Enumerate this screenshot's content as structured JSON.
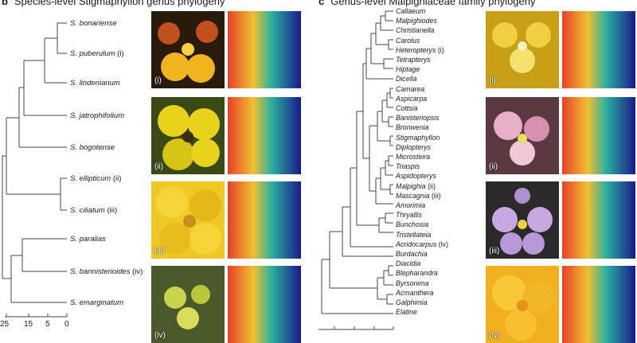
{
  "panel_b": {
    "letter": "b",
    "title": "Species-level Stigmaphyllon genus phylogeny",
    "species": [
      {
        "name": "S. bonariense",
        "annot": ""
      },
      {
        "name": "S. puberulum",
        "annot": "(i)"
      },
      {
        "name": "S. lindenianum",
        "annot": ""
      },
      {
        "name": "S. jatrophifolium",
        "annot": ""
      },
      {
        "name": "S. bogotense",
        "annot": ""
      },
      {
        "name": "S. ellipticum",
        "annot": "(ii)"
      },
      {
        "name": "S. ciliatum",
        "annot": "(iii)"
      },
      {
        "name": "S. paralias",
        "annot": ""
      },
      {
        "name": "S. bannisterioides",
        "annot": "(iv)"
      },
      {
        "name": "S. emarginatum",
        "annot": ""
      }
    ],
    "photos": [
      "(i)",
      "(ii)",
      "(iii)",
      "(iv)"
    ],
    "axis_ticks": [
      "25",
      "15",
      "5",
      "0"
    ]
  },
  "panel_c": {
    "letter": "c",
    "title": "Genus-level Malpighiaceae family phylogeny",
    "genera": [
      {
        "name": "Callaeum",
        "annot": ""
      },
      {
        "name": "Malpighiodes",
        "annot": ""
      },
      {
        "name": "Christianella",
        "annot": ""
      },
      {
        "name": "Carolus",
        "annot": ""
      },
      {
        "name": "Heteropterys",
        "annot": "(i)"
      },
      {
        "name": "Tetrapterys",
        "annot": ""
      },
      {
        "name": "Hiptage",
        "annot": ""
      },
      {
        "name": "Dicella",
        "annot": ""
      },
      {
        "name": "Camarea",
        "annot": ""
      },
      {
        "name": "Aspicarpa",
        "annot": ""
      },
      {
        "name": "Cottsia",
        "annot": ""
      },
      {
        "name": "Banisteriopsis",
        "annot": ""
      },
      {
        "name": "Bronwenia",
        "annot": ""
      },
      {
        "name": "Stigmaphyllon",
        "annot": ""
      },
      {
        "name": "Diplopterys",
        "annot": ""
      },
      {
        "name": "Microsteira",
        "annot": ""
      },
      {
        "name": "Triaspis",
        "annot": ""
      },
      {
        "name": "Aspidopterys",
        "annot": ""
      },
      {
        "name": "Malpighia",
        "annot": "(ii)"
      },
      {
        "name": "Mascagnia",
        "annot": "(iii)"
      },
      {
        "name": "Amorimia",
        "annot": ""
      },
      {
        "name": "Thryallis",
        "annot": ""
      },
      {
        "name": "Bunchosia",
        "annot": ""
      },
      {
        "name": "Tristellateia",
        "annot": ""
      },
      {
        "name": "Acridocarpus",
        "annot": "(iv)"
      },
      {
        "name": "Burdachia",
        "annot": ""
      },
      {
        "name": "Diacidia",
        "annot": ""
      },
      {
        "name": "Blepharandra",
        "annot": ""
      },
      {
        "name": "Byrsonima",
        "annot": ""
      },
      {
        "name": "Acmanthera",
        "annot": ""
      },
      {
        "name": "Galphimia",
        "annot": ""
      },
      {
        "name": "Elatine",
        "annot": ""
      }
    ],
    "photos": [
      "(i)",
      "(ii)",
      "(iii)",
      "(iv)"
    ]
  },
  "colors": {
    "tree_line": "#444444",
    "heat_low": "#1a1a8c",
    "heat_high": "#e8402a"
  }
}
